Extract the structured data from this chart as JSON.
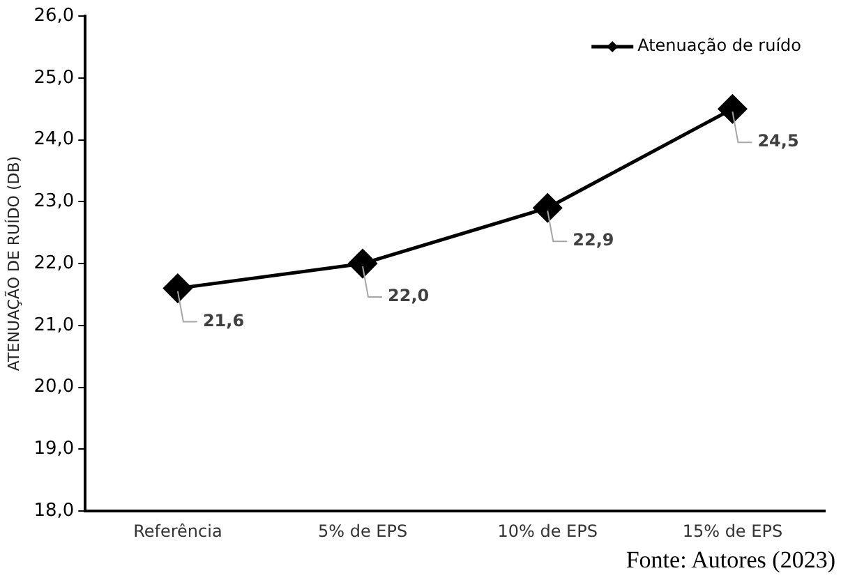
{
  "chart_data": {
    "type": "line",
    "ylabel": "ATENUAÇÃO DE RUÍDO (DB)",
    "categories": [
      "Referência",
      "5% de EPS",
      "10% de EPS",
      "15% de EPS"
    ],
    "series": [
      {
        "name": "Atenuação de ruído",
        "color": "#000000",
        "values": [
          21.6,
          22.0,
          22.9,
          24.5
        ],
        "value_labels": [
          "21,6",
          "22,0",
          "22,9",
          "24,5"
        ]
      }
    ],
    "ylim": [
      18,
      26
    ],
    "yticks": [
      {
        "value": 18,
        "label": "18,0"
      },
      {
        "value": 19,
        "label": "19,0"
      },
      {
        "value": 20,
        "label": "20,0"
      },
      {
        "value": 21,
        "label": "21,0"
      },
      {
        "value": 22,
        "label": "22,0"
      },
      {
        "value": 23,
        "label": "23,0"
      },
      {
        "value": 24,
        "label": "24,0"
      },
      {
        "value": 25,
        "label": "25,0"
      },
      {
        "value": 26,
        "label": "26,0"
      }
    ],
    "grid": false,
    "legend": "top right",
    "marker": "diamond",
    "line_style": "solid",
    "annotations": [
      "Fonte: Autores (2023)"
    ]
  }
}
